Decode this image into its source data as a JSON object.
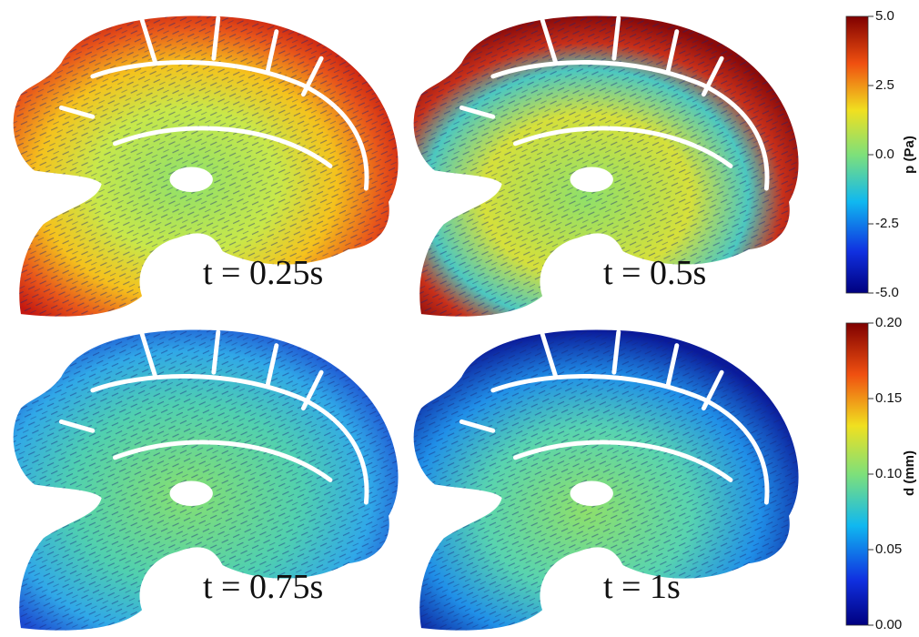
{
  "panels": [
    {
      "label": "t = 0.25s"
    },
    {
      "label": "t = 0.5s"
    },
    {
      "label": "t = 0.75s"
    },
    {
      "label": "t = 1s"
    }
  ],
  "colorbars": [
    {
      "label": "p (Pa)",
      "ticks": [
        "5.0",
        "2.5",
        "0.0",
        "-2.5",
        "-5.0"
      ]
    },
    {
      "label": "d (mm)",
      "ticks": [
        "0.20",
        "0.15",
        "0.10",
        "0.05",
        "0.00"
      ]
    }
  ]
}
